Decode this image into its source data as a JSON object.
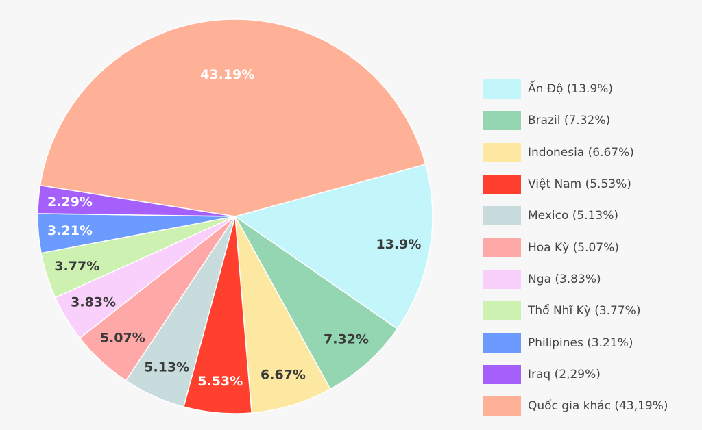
{
  "chart_data": {
    "type": "pie",
    "title": "",
    "slices": [
      {
        "name": "Ấn Độ",
        "value": 13.9,
        "label": "13.9%",
        "legend": "Ấn Độ (13.9%)",
        "color": "#c3f6fb",
        "text_color": "#3a3a3a"
      },
      {
        "name": "Brazil",
        "value": 7.32,
        "label": "7.32%",
        "legend": "Brazil (7.32%)",
        "color": "#94d6b1",
        "text_color": "#3a3a3a"
      },
      {
        "name": "Indonesia",
        "value": 6.67,
        "label": "6.67%",
        "legend": "Indonesia (6.67%)",
        "color": "#fde8a1",
        "text_color": "#3a3a3a"
      },
      {
        "name": "Việt Nam",
        "value": 5.53,
        "label": "5.53%",
        "legend": "Việt Nam (5.53%)",
        "color": "#ff402f",
        "text_color": "#ffffff"
      },
      {
        "name": "Mexico",
        "value": 5.13,
        "label": "5.13%",
        "legend": "Mexico (5.13%)",
        "color": "#c8dbdd",
        "text_color": "#3a3a3a"
      },
      {
        "name": "Hoa Kỳ",
        "value": 5.07,
        "label": "5.07%",
        "legend": "Hoa Kỳ (5.07%)",
        "color": "#ffa8a8",
        "text_color": "#3a3a3a"
      },
      {
        "name": "Nga",
        "value": 3.83,
        "label": "3.83%",
        "legend": "Nga (3.83%)",
        "color": "#f9cffc",
        "text_color": "#3a3a3a"
      },
      {
        "name": "Thổ Nhĩ Kỳ",
        "value": 3.77,
        "label": "3.77%",
        "legend": "Thổ Nhĩ Kỳ (3.77%)",
        "color": "#ccf1b0",
        "text_color": "#3a3a3a"
      },
      {
        "name": "Philipines",
        "value": 3.21,
        "label": "3.21%",
        "legend": "Philipines (3.21%)",
        "color": "#6b9bff",
        "text_color": "#ffffff"
      },
      {
        "name": "Iraq",
        "value": 2.29,
        "label": "2.29%",
        "legend": "Iraq (2,29%)",
        "color": "#a55ffb",
        "text_color": "#ffffff"
      },
      {
        "name": "Quốc gia khác",
        "value": 43.19,
        "label": "43.19%",
        "legend": "Quốc gia khác (43,19%)",
        "color": "#ffb198",
        "text_color": "#ffffff"
      }
    ],
    "legend_position": "right"
  }
}
